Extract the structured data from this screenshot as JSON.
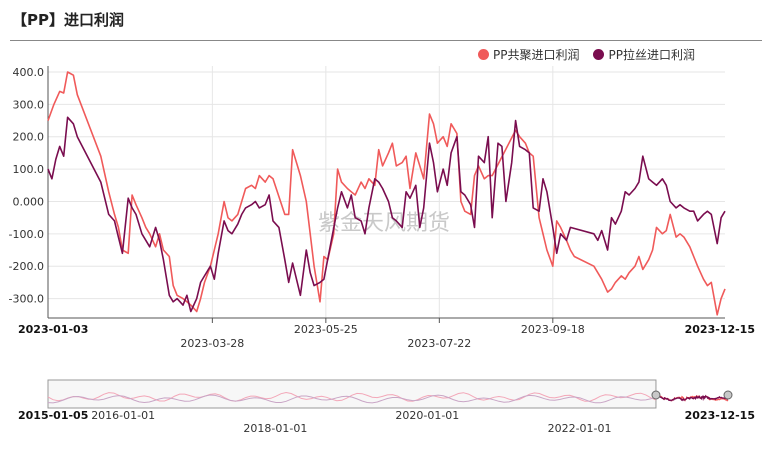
{
  "page": {
    "title": "【PP】进口利润"
  },
  "watermark": "紫金天风期货",
  "chart_data": {
    "type": "line",
    "title": "【PP】进口利润",
    "ylim": [
      -360,
      400
    ],
    "yticks": [
      "400.0",
      "300.0",
      "200.0",
      "100.0",
      "0.000",
      "-100.0",
      "-200.0",
      "-300.0"
    ],
    "x_range": [
      "2023-01-03",
      "2023-12-15"
    ],
    "x_edge_labels": [
      "2023-01-03",
      "2023-12-15"
    ],
    "x_tick_labels": [
      "2023-03-28",
      "2023-05-25",
      "2023-07-22",
      "2023-09-18"
    ],
    "grid": true,
    "legend_position": "top-right",
    "series": [
      {
        "name": "PP共聚进口利润",
        "color": "#f05a5a",
        "points": [
          [
            "2023-01-03",
            250
          ],
          [
            "2023-01-06",
            300
          ],
          [
            "2023-01-09",
            340
          ],
          [
            "2023-01-11",
            335
          ],
          [
            "2023-01-13",
            400
          ],
          [
            "2023-01-16",
            390
          ],
          [
            "2023-01-18",
            330
          ],
          [
            "2023-01-30",
            140
          ],
          [
            "2023-02-03",
            30
          ],
          [
            "2023-02-06",
            -40
          ],
          [
            "2023-02-08",
            -80
          ],
          [
            "2023-02-10",
            -150
          ],
          [
            "2023-02-13",
            -160
          ],
          [
            "2023-02-15",
            20
          ],
          [
            "2023-02-17",
            -10
          ],
          [
            "2023-02-20",
            -50
          ],
          [
            "2023-02-22",
            -80
          ],
          [
            "2023-02-24",
            -100
          ],
          [
            "2023-02-27",
            -140
          ],
          [
            "2023-03-01",
            -100
          ],
          [
            "2023-03-03",
            -150
          ],
          [
            "2023-03-06",
            -170
          ],
          [
            "2023-03-08",
            -260
          ],
          [
            "2023-03-10",
            -290
          ],
          [
            "2023-03-13",
            -300
          ],
          [
            "2023-03-15",
            -310
          ],
          [
            "2023-03-17",
            -320
          ],
          [
            "2023-03-20",
            -340
          ],
          [
            "2023-03-22",
            -300
          ],
          [
            "2023-03-24",
            -250
          ],
          [
            "2023-03-27",
            -200
          ],
          [
            "2023-03-29",
            -150
          ],
          [
            "2023-03-31",
            -100
          ],
          [
            "2023-04-03",
            0
          ],
          [
            "2023-04-05",
            -50
          ],
          [
            "2023-04-07",
            -60
          ],
          [
            "2023-04-10",
            -40
          ],
          [
            "2023-04-12",
            0
          ],
          [
            "2023-04-14",
            40
          ],
          [
            "2023-04-17",
            50
          ],
          [
            "2023-04-19",
            40
          ],
          [
            "2023-04-21",
            80
          ],
          [
            "2023-04-24",
            60
          ],
          [
            "2023-04-26",
            80
          ],
          [
            "2023-04-28",
            70
          ],
          [
            "2023-05-04",
            -40
          ],
          [
            "2023-05-06",
            -40
          ],
          [
            "2023-05-08",
            160
          ],
          [
            "2023-05-10",
            120
          ],
          [
            "2023-05-12",
            80
          ],
          [
            "2023-05-15",
            0
          ],
          [
            "2023-05-17",
            -100
          ],
          [
            "2023-05-19",
            -200
          ],
          [
            "2023-05-22",
            -310
          ],
          [
            "2023-05-24",
            -170
          ],
          [
            "2023-05-26",
            -180
          ],
          [
            "2023-05-29",
            -100
          ],
          [
            "2023-05-31",
            100
          ],
          [
            "2023-06-02",
            60
          ],
          [
            "2023-06-05",
            40
          ],
          [
            "2023-06-07",
            30
          ],
          [
            "2023-06-09",
            20
          ],
          [
            "2023-06-12",
            60
          ],
          [
            "2023-06-14",
            40
          ],
          [
            "2023-06-16",
            70
          ],
          [
            "2023-06-19",
            50
          ],
          [
            "2023-06-21",
            160
          ],
          [
            "2023-06-23",
            110
          ],
          [
            "2023-06-26",
            150
          ],
          [
            "2023-06-28",
            180
          ],
          [
            "2023-06-30",
            110
          ],
          [
            "2023-07-03",
            120
          ],
          [
            "2023-07-05",
            140
          ],
          [
            "2023-07-07",
            40
          ],
          [
            "2023-07-10",
            150
          ],
          [
            "2023-07-12",
            110
          ],
          [
            "2023-07-14",
            70
          ],
          [
            "2023-07-17",
            270
          ],
          [
            "2023-07-19",
            240
          ],
          [
            "2023-07-21",
            180
          ],
          [
            "2023-07-24",
            200
          ],
          [
            "2023-07-26",
            170
          ],
          [
            "2023-07-28",
            240
          ],
          [
            "2023-07-31",
            210
          ],
          [
            "2023-08-02",
            0
          ],
          [
            "2023-08-04",
            -30
          ],
          [
            "2023-08-07",
            -40
          ],
          [
            "2023-08-09",
            80
          ],
          [
            "2023-08-11",
            110
          ],
          [
            "2023-08-14",
            70
          ],
          [
            "2023-08-16",
            80
          ],
          [
            "2023-08-18",
            80
          ],
          [
            "2023-08-30",
            220
          ],
          [
            "2023-09-01",
            200
          ],
          [
            "2023-09-04",
            180
          ],
          [
            "2023-09-06",
            150
          ],
          [
            "2023-09-08",
            140
          ],
          [
            "2023-09-11",
            -50
          ],
          [
            "2023-09-13",
            -100
          ],
          [
            "2023-09-15",
            -150
          ],
          [
            "2023-09-18",
            -200
          ],
          [
            "2023-09-20",
            -60
          ],
          [
            "2023-09-22",
            -80
          ],
          [
            "2023-09-25",
            -120
          ],
          [
            "2023-09-27",
            -150
          ],
          [
            "2023-09-29",
            -170
          ],
          [
            "2023-10-09",
            -200
          ],
          [
            "2023-10-11",
            -220
          ],
          [
            "2023-10-13",
            -240
          ],
          [
            "2023-10-16",
            -280
          ],
          [
            "2023-10-18",
            -270
          ],
          [
            "2023-10-20",
            -250
          ],
          [
            "2023-10-23",
            -230
          ],
          [
            "2023-10-25",
            -240
          ],
          [
            "2023-10-27",
            -220
          ],
          [
            "2023-10-30",
            -200
          ],
          [
            "2023-11-01",
            -170
          ],
          [
            "2023-11-03",
            -210
          ],
          [
            "2023-11-06",
            -180
          ],
          [
            "2023-11-08",
            -150
          ],
          [
            "2023-11-10",
            -80
          ],
          [
            "2023-11-13",
            -100
          ],
          [
            "2023-11-15",
            -90
          ],
          [
            "2023-11-17",
            -40
          ],
          [
            "2023-11-20",
            -110
          ],
          [
            "2023-11-22",
            -100
          ],
          [
            "2023-11-24",
            -110
          ],
          [
            "2023-11-27",
            -140
          ],
          [
            "2023-11-29",
            -170
          ],
          [
            "2023-12-01",
            -200
          ],
          [
            "2023-12-04",
            -240
          ],
          [
            "2023-12-06",
            -260
          ],
          [
            "2023-12-08",
            -250
          ],
          [
            "2023-12-11",
            -350
          ],
          [
            "2023-12-13",
            -300
          ],
          [
            "2023-12-15",
            -270
          ]
        ]
      },
      {
        "name": "PP拉丝进口利润",
        "color": "#7a0d4f",
        "points": [
          [
            "2023-01-03",
            100
          ],
          [
            "2023-01-05",
            70
          ],
          [
            "2023-01-07",
            130
          ],
          [
            "2023-01-09",
            170
          ],
          [
            "2023-01-11",
            140
          ],
          [
            "2023-01-13",
            260
          ],
          [
            "2023-01-16",
            240
          ],
          [
            "2023-01-18",
            200
          ],
          [
            "2023-01-30",
            60
          ],
          [
            "2023-02-03",
            -40
          ],
          [
            "2023-02-06",
            -60
          ],
          [
            "2023-02-08",
            -110
          ],
          [
            "2023-02-10",
            -160
          ],
          [
            "2023-02-13",
            10
          ],
          [
            "2023-02-15",
            -20
          ],
          [
            "2023-02-17",
            -40
          ],
          [
            "2023-02-20",
            -100
          ],
          [
            "2023-02-22",
            -120
          ],
          [
            "2023-02-24",
            -140
          ],
          [
            "2023-02-27",
            -80
          ],
          [
            "2023-03-01",
            -120
          ],
          [
            "2023-03-03",
            -180
          ],
          [
            "2023-03-06",
            -290
          ],
          [
            "2023-03-08",
            -310
          ],
          [
            "2023-03-10",
            -300
          ],
          [
            "2023-03-13",
            -320
          ],
          [
            "2023-03-15",
            -290
          ],
          [
            "2023-03-17",
            -340
          ],
          [
            "2023-03-20",
            -300
          ],
          [
            "2023-03-22",
            -250
          ],
          [
            "2023-03-24",
            -230
          ],
          [
            "2023-03-27",
            -200
          ],
          [
            "2023-03-29",
            -240
          ],
          [
            "2023-03-31",
            -160
          ],
          [
            "2023-04-03",
            -60
          ],
          [
            "2023-04-05",
            -90
          ],
          [
            "2023-04-07",
            -100
          ],
          [
            "2023-04-10",
            -70
          ],
          [
            "2023-04-12",
            -40
          ],
          [
            "2023-04-14",
            -20
          ],
          [
            "2023-04-17",
            -10
          ],
          [
            "2023-04-19",
            0
          ],
          [
            "2023-04-21",
            -20
          ],
          [
            "2023-04-24",
            -10
          ],
          [
            "2023-04-26",
            20
          ],
          [
            "2023-04-28",
            -60
          ],
          [
            "2023-05-01",
            -80
          ],
          [
            "2023-05-04",
            -180
          ],
          [
            "2023-05-06",
            -250
          ],
          [
            "2023-05-08",
            -190
          ],
          [
            "2023-05-10",
            -240
          ],
          [
            "2023-05-12",
            -290
          ],
          [
            "2023-05-15",
            -150
          ],
          [
            "2023-05-17",
            -220
          ],
          [
            "2023-05-19",
            -260
          ],
          [
            "2023-05-22",
            -250
          ],
          [
            "2023-05-24",
            -240
          ],
          [
            "2023-05-31",
            -20
          ],
          [
            "2023-06-02",
            30
          ],
          [
            "2023-06-05",
            -20
          ],
          [
            "2023-06-07",
            20
          ],
          [
            "2023-06-09",
            -50
          ],
          [
            "2023-06-12",
            -60
          ],
          [
            "2023-06-14",
            -100
          ],
          [
            "2023-06-16",
            -20
          ],
          [
            "2023-06-19",
            70
          ],
          [
            "2023-06-21",
            60
          ],
          [
            "2023-06-23",
            40
          ],
          [
            "2023-06-26",
            0
          ],
          [
            "2023-06-28",
            -50
          ],
          [
            "2023-06-30",
            -60
          ],
          [
            "2023-07-03",
            -80
          ],
          [
            "2023-07-05",
            30
          ],
          [
            "2023-07-07",
            10
          ],
          [
            "2023-07-10",
            50
          ],
          [
            "2023-07-12",
            -80
          ],
          [
            "2023-07-14",
            -20
          ],
          [
            "2023-07-17",
            180
          ],
          [
            "2023-07-19",
            120
          ],
          [
            "2023-07-21",
            30
          ],
          [
            "2023-07-24",
            100
          ],
          [
            "2023-07-26",
            50
          ],
          [
            "2023-07-28",
            150
          ],
          [
            "2023-07-31",
            200
          ],
          [
            "2023-08-02",
            30
          ],
          [
            "2023-08-04",
            20
          ],
          [
            "2023-08-07",
            -10
          ],
          [
            "2023-08-09",
            -80
          ],
          [
            "2023-08-11",
            140
          ],
          [
            "2023-08-14",
            120
          ],
          [
            "2023-08-16",
            200
          ],
          [
            "2023-08-18",
            -50
          ],
          [
            "2023-08-21",
            180
          ],
          [
            "2023-08-23",
            170
          ],
          [
            "2023-08-25",
            0
          ],
          [
            "2023-08-28",
            120
          ],
          [
            "2023-08-30",
            250
          ],
          [
            "2023-09-01",
            170
          ],
          [
            "2023-09-04",
            160
          ],
          [
            "2023-09-06",
            150
          ],
          [
            "2023-09-08",
            -20
          ],
          [
            "2023-09-11",
            -30
          ],
          [
            "2023-09-13",
            70
          ],
          [
            "2023-09-15",
            30
          ],
          [
            "2023-09-18",
            -80
          ],
          [
            "2023-09-20",
            -160
          ],
          [
            "2023-09-22",
            -100
          ],
          [
            "2023-09-25",
            -120
          ],
          [
            "2023-09-27",
            -80
          ],
          [
            "2023-10-09",
            -100
          ],
          [
            "2023-10-11",
            -120
          ],
          [
            "2023-10-13",
            -90
          ],
          [
            "2023-10-16",
            -150
          ],
          [
            "2023-10-18",
            -50
          ],
          [
            "2023-10-20",
            -70
          ],
          [
            "2023-10-23",
            -30
          ],
          [
            "2023-10-25",
            30
          ],
          [
            "2023-10-27",
            20
          ],
          [
            "2023-10-30",
            40
          ],
          [
            "2023-11-01",
            60
          ],
          [
            "2023-11-03",
            140
          ],
          [
            "2023-11-06",
            70
          ],
          [
            "2023-11-08",
            60
          ],
          [
            "2023-11-10",
            50
          ],
          [
            "2023-11-13",
            70
          ],
          [
            "2023-11-15",
            50
          ],
          [
            "2023-11-17",
            0
          ],
          [
            "2023-11-20",
            -20
          ],
          [
            "2023-11-22",
            -10
          ],
          [
            "2023-11-24",
            -20
          ],
          [
            "2023-11-27",
            -30
          ],
          [
            "2023-11-29",
            -30
          ],
          [
            "2023-12-01",
            -60
          ],
          [
            "2023-12-04",
            -40
          ],
          [
            "2023-12-06",
            -30
          ],
          [
            "2023-12-08",
            -40
          ],
          [
            "2023-12-11",
            -130
          ],
          [
            "2023-12-13",
            -50
          ],
          [
            "2023-12-15",
            -30
          ]
        ]
      }
    ]
  },
  "navigator": {
    "range_start": "2015-01-05",
    "range_end": "2023-12-15",
    "selected_start": "2023-01-03",
    "selected_end": "2023-12-15",
    "tick_labels": [
      "2016-01-01",
      "2018-01-01",
      "2020-01-01",
      "2022-01-01"
    ]
  }
}
